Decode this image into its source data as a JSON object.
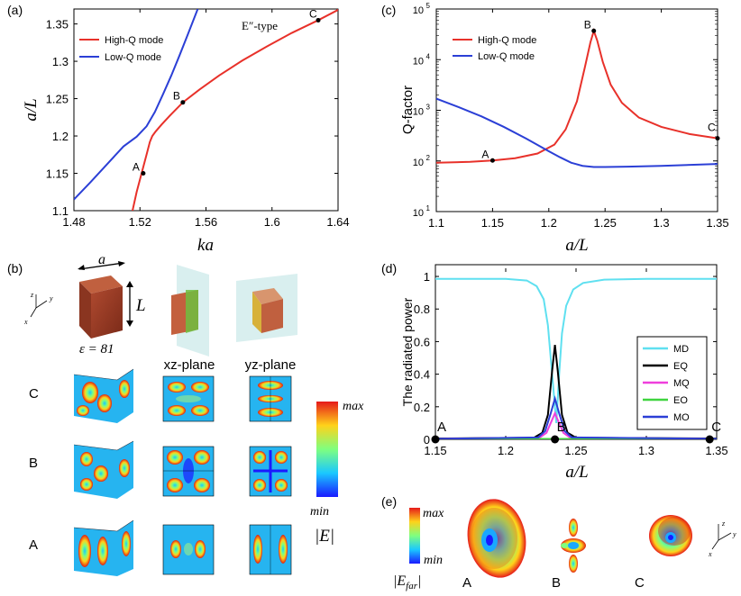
{
  "panels": {
    "a": "(a)",
    "b": "(b)",
    "c": "(c)",
    "d": "(d)",
    "e": "(e)"
  },
  "chart_data": [
    {
      "id": "a",
      "type": "line",
      "title": "E″-type",
      "xlabel": "ka",
      "ylabel": "a/L",
      "xlim": [
        1.48,
        1.64
      ],
      "ylim": [
        1.1,
        1.37
      ],
      "xticks": [
        1.48,
        1.52,
        1.56,
        1.6,
        1.64
      ],
      "xtick_labels": [
        "1.48",
        "1.52",
        "1.56",
        "1.6",
        "1.64"
      ],
      "yticks": [
        1.1,
        1.15,
        1.2,
        1.25,
        1.3,
        1.35
      ],
      "ytick_labels": [
        "1.1",
        "1.15",
        "1.2",
        "1.25",
        "1.3",
        "1.35"
      ],
      "series": [
        {
          "name": "High-Q mode",
          "color": "#e8312a",
          "x": [
            1.5155,
            1.518,
            1.521,
            1.524,
            1.526,
            1.5275,
            1.5295,
            1.533,
            1.538,
            1.546,
            1.556,
            1.568,
            1.582,
            1.597,
            1.612,
            1.628,
            1.641
          ],
          "y": [
            1.1,
            1.125,
            1.15,
            1.175,
            1.192,
            1.2,
            1.206,
            1.215,
            1.227,
            1.245,
            1.262,
            1.281,
            1.301,
            1.32,
            1.338,
            1.355,
            1.37
          ]
        },
        {
          "name": "Low-Q mode",
          "color": "#2b3fd6",
          "x": [
            1.48,
            1.49,
            1.5,
            1.51,
            1.518,
            1.524,
            1.529,
            1.534,
            1.539,
            1.544,
            1.549,
            1.555
          ],
          "y": [
            1.115,
            1.138,
            1.162,
            1.186,
            1.199,
            1.213,
            1.232,
            1.256,
            1.281,
            1.308,
            1.336,
            1.37
          ]
        }
      ],
      "points": [
        {
          "label": "A",
          "x": 1.522,
          "y": 1.15
        },
        {
          "label": "B",
          "x": 1.546,
          "y": 1.245
        },
        {
          "label": "C",
          "x": 1.628,
          "y": 1.355
        }
      ],
      "legend": "top-left"
    },
    {
      "id": "c",
      "type": "line",
      "xlabel": "a/L",
      "ylabel": "Q-factor",
      "yscale": "log",
      "xlim": [
        1.1,
        1.35
      ],
      "ylim_exp": [
        1,
        5
      ],
      "xticks": [
        1.1,
        1.15,
        1.2,
        1.25,
        1.3,
        1.35
      ],
      "xtick_labels": [
        "1.1",
        "1.15",
        "1.2",
        "1.25",
        "1.3",
        "1.35"
      ],
      "ytick_labels": [
        "10",
        "10",
        "10",
        "10",
        "10"
      ],
      "ytick_exps": [
        "1",
        "2",
        "3",
        "4",
        "5"
      ],
      "series": [
        {
          "name": "High-Q mode",
          "color": "#e8312a",
          "x": [
            1.1,
            1.13,
            1.15,
            1.17,
            1.19,
            1.205,
            1.215,
            1.225,
            1.232,
            1.237,
            1.24,
            1.243,
            1.248,
            1.255,
            1.265,
            1.28,
            1.3,
            1.325,
            1.35
          ],
          "y": [
            92,
            96,
            102,
            113,
            140,
            210,
            420,
            1500,
            7000,
            22000,
            37000,
            24000,
            9000,
            3200,
            1400,
            720,
            470,
            340,
            280
          ]
        },
        {
          "name": "Low-Q mode",
          "color": "#2b3fd6",
          "x": [
            1.1,
            1.12,
            1.14,
            1.16,
            1.18,
            1.2,
            1.21,
            1.22,
            1.23,
            1.24,
            1.25,
            1.27,
            1.3,
            1.35
          ],
          "y": [
            1700,
            1150,
            760,
            470,
            275,
            155,
            118,
            92,
            80,
            76,
            76,
            77,
            80,
            87
          ]
        }
      ],
      "points": [
        {
          "label": "A",
          "x": 1.15,
          "y": 102
        },
        {
          "label": "B",
          "x": 1.24,
          "y": 37000
        },
        {
          "label": "C",
          "x": 1.35,
          "y": 280
        }
      ],
      "legend": "top-left"
    },
    {
      "id": "d",
      "type": "line",
      "xlabel": "a/L",
      "ylabel": "The radiated power",
      "xlim": [
        1.15,
        1.35
      ],
      "ylim": [
        0,
        1.05
      ],
      "xticks": [
        1.15,
        1.2,
        1.25,
        1.3,
        1.35
      ],
      "xtick_labels": [
        "1.15",
        "1.2",
        "1.25",
        "1.3",
        "1.35"
      ],
      "yticks": [
        0,
        0.2,
        0.4,
        0.6,
        0.8,
        1
      ],
      "ytick_labels": [
        "0",
        "0.2",
        "0.4",
        "0.6",
        "0.8",
        "1"
      ],
      "series": [
        {
          "name": "MD",
          "color": "#5fe0f0",
          "x": [
            1.15,
            1.2,
            1.215,
            1.222,
            1.227,
            1.23,
            1.232,
            1.234,
            1.236,
            1.238,
            1.24,
            1.243,
            1.248,
            1.255,
            1.27,
            1.3,
            1.35
          ],
          "y": [
            0.985,
            0.985,
            0.975,
            0.94,
            0.86,
            0.7,
            0.5,
            0.3,
            0.1,
            0.4,
            0.65,
            0.82,
            0.92,
            0.96,
            0.98,
            0.985,
            0.985
          ]
        },
        {
          "name": "EQ",
          "color": "#000000",
          "x": [
            1.15,
            1.22,
            1.226,
            1.23,
            1.233,
            1.235,
            1.237,
            1.24,
            1.244,
            1.25,
            1.35
          ],
          "y": [
            0.005,
            0.01,
            0.04,
            0.15,
            0.42,
            0.58,
            0.42,
            0.15,
            0.04,
            0.01,
            0.005
          ]
        },
        {
          "name": "MQ",
          "color": "#ef3fdc",
          "x": [
            1.15,
            1.224,
            1.229,
            1.232,
            1.235,
            1.238,
            1.241,
            1.246,
            1.35
          ],
          "y": [
            0.003,
            0.01,
            0.04,
            0.1,
            0.16,
            0.1,
            0.04,
            0.01,
            0.003
          ]
        },
        {
          "name": "EO",
          "color": "#3fd43f",
          "x": [
            1.15,
            1.35
          ],
          "y": [
            0.003,
            0.003
          ]
        },
        {
          "name": "MO",
          "color": "#2b3fd6",
          "x": [
            1.15,
            1.223,
            1.228,
            1.232,
            1.235,
            1.238,
            1.242,
            1.247,
            1.35
          ],
          "y": [
            0.003,
            0.012,
            0.05,
            0.16,
            0.25,
            0.16,
            0.05,
            0.012,
            0.003
          ]
        }
      ],
      "points": [
        {
          "label": "A",
          "x": 1.15,
          "y": 0
        },
        {
          "label": "B",
          "x": 1.235,
          "y": 0
        },
        {
          "label": "C",
          "x": 1.345,
          "y": 0
        }
      ],
      "legend": "right"
    }
  ],
  "panel_b": {
    "dim_a": "a",
    "dim_L": "L",
    "epsilon": "ε = 81",
    "xz_plane": "xz-plane",
    "yz-plane": "yz-plane",
    "yz_plane": "yz-plane",
    "rows": [
      "C",
      "B",
      "A"
    ],
    "colorbar_max": "max",
    "colorbar_min": "min",
    "colorbar_label": "|E|",
    "axes": {
      "z": "z",
      "y": "y",
      "x": "x"
    }
  },
  "panel_e": {
    "colorbar_max": "max",
    "colorbar_min": "min",
    "colorbar_label": "|E",
    "colorbar_sub": "far",
    "colorbar_label_end": "|",
    "labels": [
      "A",
      "B",
      "C"
    ],
    "axes": {
      "z": "z",
      "y": "y",
      "x": "x"
    }
  },
  "colors": {
    "high_q": "#e8312a",
    "low_q": "#2b3fd6"
  }
}
